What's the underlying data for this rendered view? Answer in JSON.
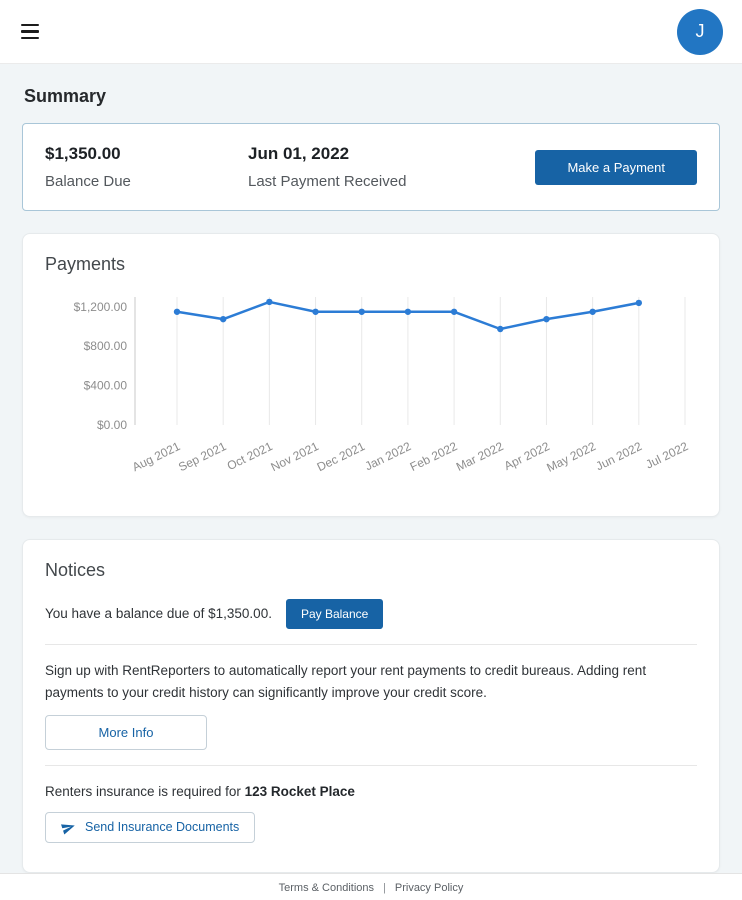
{
  "colors": {
    "primary_button": "#1763a5",
    "avatar_blue": "#2276c3",
    "chart_line": "#2c7cd5",
    "page_background": "#f1f5f7"
  },
  "header": {
    "avatar_initial": "J"
  },
  "summary": {
    "title": "Summary",
    "balance_amount": "$1,350.00",
    "balance_label": "Balance Due",
    "last_payment_date": "Jun 01, 2022",
    "last_payment_label": "Last Payment Received",
    "make_payment_label": "Make a Payment"
  },
  "payments": {
    "title": "Payments"
  },
  "chart_data": {
    "type": "line",
    "title": "Payments",
    "x": [
      "Aug 2021",
      "Sep 2021",
      "Oct 2021",
      "Nov 2021",
      "Dec 2021",
      "Jan 2022",
      "Feb 2022",
      "Mar 2022",
      "Apr 2022",
      "May 2022",
      "Jun 2022",
      "Jul 2022"
    ],
    "series": [
      {
        "name": "Payments",
        "values": [
          1150,
          1075,
          1250,
          1150,
          1150,
          1150,
          1150,
          975,
          1075,
          1150,
          1240
        ]
      }
    ],
    "ylim": [
      0,
      1300
    ],
    "yticks": [
      0,
      400,
      800,
      1200
    ],
    "ytick_labels": [
      "$0.00",
      "$400.00",
      "$800.00",
      "$1,200.00"
    ],
    "xlabel": "",
    "ylabel": "",
    "grid": "vertical",
    "legend": "none",
    "line_color": "#2c7cd5"
  },
  "notices": {
    "title": "Notices",
    "balance_notice": "You have a balance due of $1,350.00.",
    "pay_balance_label": "Pay Balance",
    "rentreporters_text": "Sign up with RentReporters to automatically report your rent payments to credit bureaus. Adding rent payments to your credit history can significantly improve your credit score.",
    "more_info_label": "More Info",
    "insurance_text": "Renters insurance is required for",
    "insurance_property": "123 Rocket Place",
    "send_insurance_label": "Send Insurance Documents"
  },
  "footer": {
    "terms_label": "Terms & Conditions",
    "separator": "|",
    "privacy_label": "Privacy Policy"
  }
}
